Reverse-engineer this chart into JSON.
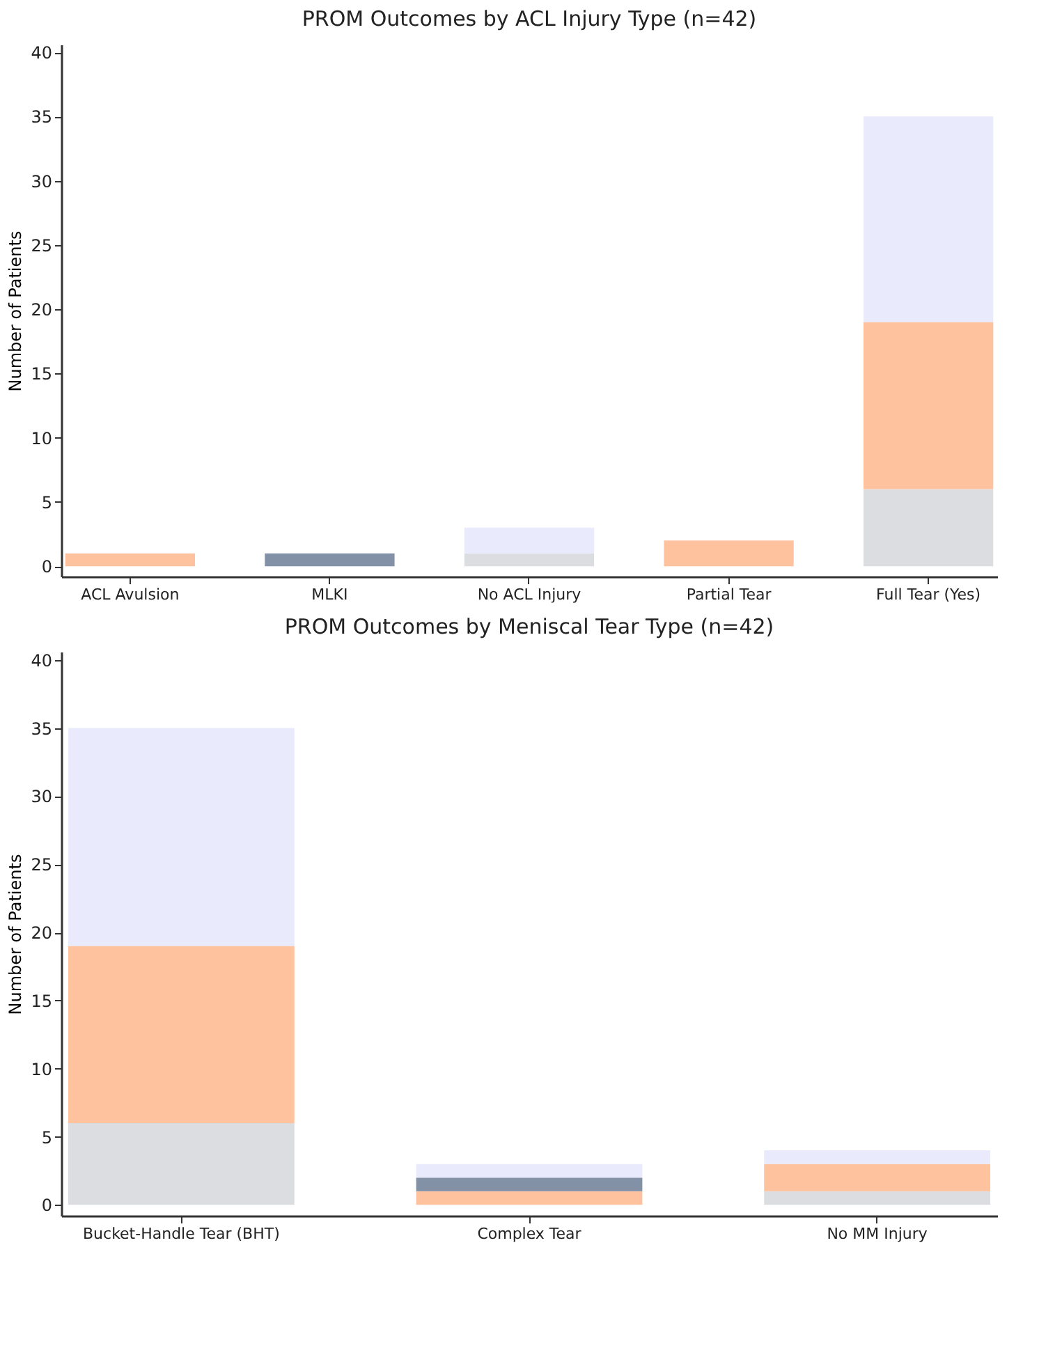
{
  "chart_data": [
    {
      "type": "bar",
      "title": "PROM Outcomes by ACL Injury Type (n=42)",
      "ylabel": "Number of Patients",
      "stacked": true,
      "categories": [
        "ACL Avulsion",
        "MLKI",
        "No ACL Injury",
        "Partial Tear",
        "Full Tear (Yes)"
      ],
      "ylim": [
        -0.8,
        40.6
      ],
      "yticks": [
        0,
        5,
        10,
        15,
        20,
        25,
        30,
        35,
        40
      ],
      "grid": false,
      "legend": false,
      "series": [
        {
          "color": "#dcdde1",
          "values": [
            0,
            0,
            1,
            0,
            6
          ]
        },
        {
          "color": "#fec29e",
          "values": [
            1,
            0,
            0,
            2,
            13
          ]
        },
        {
          "color": "#8391a6",
          "values": [
            0,
            1,
            0,
            0,
            0
          ]
        },
        {
          "color": "#e9eafc",
          "values": [
            0,
            0,
            2,
            0,
            16
          ]
        }
      ]
    },
    {
      "type": "bar",
      "title": "PROM Outcomes by Meniscal Tear Type (n=42)",
      "ylabel": "Number of Patients",
      "stacked": true,
      "categories": [
        "Bucket-Handle Tear (BHT)",
        "Complex Tear",
        "No MM Injury"
      ],
      "ylim": [
        -0.8,
        40.6
      ],
      "yticks": [
        0,
        5,
        10,
        15,
        20,
        25,
        30,
        35,
        40
      ],
      "grid": false,
      "legend": false,
      "series": [
        {
          "color": "#dcdde1",
          "values": [
            6,
            0,
            1
          ]
        },
        {
          "color": "#fec29e",
          "values": [
            13,
            1,
            2
          ]
        },
        {
          "color": "#8391a6",
          "values": [
            0,
            1,
            0
          ]
        },
        {
          "color": "#e9eafc",
          "values": [
            16,
            1,
            1
          ]
        }
      ]
    }
  ]
}
